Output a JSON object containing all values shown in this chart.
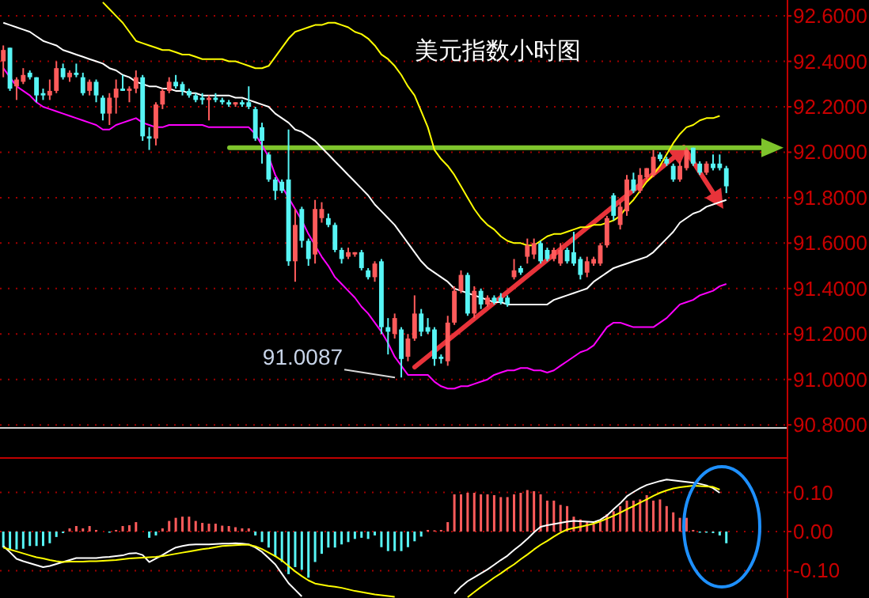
{
  "chart_data": [
    {
      "type": "candlestick",
      "title": "美元指数小时图",
      "categories": [
        null,
        null,
        null,
        null,
        null,
        null,
        null,
        null,
        null,
        null,
        null,
        null,
        null,
        null,
        null,
        null,
        null,
        null,
        null,
        null,
        null,
        null,
        null,
        null,
        null,
        null,
        null,
        null,
        null,
        null,
        null,
        null,
        null,
        null,
        null,
        null,
        null,
        null,
        null,
        null,
        null,
        null,
        null,
        null,
        null,
        null,
        null,
        null,
        null,
        null,
        null,
        null,
        null,
        null,
        null,
        null,
        null,
        null,
        null,
        null,
        null,
        null,
        null,
        null,
        null,
        null,
        null,
        null,
        null,
        null,
        null,
        null,
        null,
        null,
        null,
        null,
        null,
        null,
        null,
        null,
        null,
        null,
        null,
        null,
        null,
        null,
        null,
        null,
        null,
        null,
        null,
        null,
        null,
        null,
        null,
        null,
        null,
        null,
        null,
        null,
        null,
        null,
        null,
        null,
        null,
        null,
        null,
        null,
        null,
        null
      ],
      "ohlc": [
        [
          92.4,
          92.47,
          92.33,
          92.45
        ],
        [
          92.46,
          92.46,
          92.27,
          92.28
        ],
        [
          92.29,
          92.33,
          92.23,
          92.32
        ],
        [
          92.31,
          92.37,
          92.3,
          92.34
        ],
        [
          92.35,
          92.36,
          92.32,
          92.33
        ],
        [
          92.33,
          92.33,
          92.22,
          92.25
        ],
        [
          92.26,
          92.28,
          92.23,
          92.25
        ],
        [
          92.25,
          92.32,
          92.23,
          92.27
        ],
        [
          92.27,
          92.4,
          92.26,
          92.37
        ],
        [
          92.37,
          92.39,
          92.32,
          92.33
        ],
        [
          92.33,
          92.36,
          92.31,
          92.35
        ],
        [
          92.35,
          92.39,
          92.33,
          92.34
        ],
        [
          92.33,
          92.35,
          92.25,
          92.26
        ],
        [
          92.27,
          92.32,
          92.25,
          92.31
        ],
        [
          92.31,
          92.32,
          92.22,
          92.25
        ],
        [
          92.24,
          92.25,
          92.14,
          92.17
        ],
        [
          92.17,
          92.26,
          92.12,
          92.24
        ],
        [
          92.24,
          92.32,
          92.17,
          92.28
        ],
        [
          92.28,
          92.34,
          92.27,
          92.27
        ],
        [
          92.27,
          92.29,
          92.22,
          92.28
        ],
        [
          92.28,
          92.36,
          92.26,
          92.33
        ],
        [
          92.33,
          92.34,
          92.05,
          92.07
        ],
        [
          92.07,
          92.11,
          92.01,
          92.06
        ],
        [
          92.06,
          92.22,
          92.03,
          92.21
        ],
        [
          92.21,
          92.28,
          92.19,
          92.27
        ],
        [
          92.27,
          92.33,
          92.26,
          92.31
        ],
        [
          92.31,
          92.34,
          92.28,
          92.29
        ],
        [
          92.3,
          92.31,
          92.25,
          92.27
        ],
        [
          92.27,
          92.28,
          92.24,
          92.25
        ],
        [
          92.25,
          92.26,
          92.22,
          92.23
        ],
        [
          92.24,
          92.26,
          92.21,
          92.23
        ],
        [
          92.23,
          92.25,
          92.14,
          92.24
        ],
        [
          92.24,
          92.26,
          92.22,
          92.23
        ],
        [
          92.23,
          92.24,
          92.21,
          92.22
        ],
        [
          92.22,
          92.23,
          92.2,
          92.21
        ],
        [
          92.21,
          92.22,
          92.2,
          92.22
        ],
        [
          92.22,
          92.23,
          92.2,
          92.21
        ],
        [
          92.22,
          92.29,
          92.19,
          92.2
        ],
        [
          92.19,
          92.2,
          92.05,
          92.06
        ],
        [
          92.11,
          92.13,
          91.95,
          92.05
        ],
        [
          91.99,
          92.0,
          91.87,
          91.88
        ],
        [
          91.88,
          91.89,
          91.79,
          91.83
        ],
        [
          91.87,
          91.88,
          91.82,
          91.83
        ],
        [
          91.88,
          92.1,
          91.5,
          91.52
        ],
        [
          91.52,
          91.75,
          91.43,
          91.68
        ],
        [
          91.75,
          91.76,
          91.58,
          91.61
        ],
        [
          91.61,
          91.62,
          91.5,
          91.53
        ],
        [
          91.55,
          91.79,
          91.51,
          91.75
        ],
        [
          91.71,
          91.78,
          91.69,
          91.75
        ],
        [
          91.71,
          91.73,
          91.67,
          91.68
        ],
        [
          91.68,
          91.69,
          91.56,
          91.57
        ],
        [
          91.57,
          91.58,
          91.51,
          91.53
        ],
        [
          91.54,
          91.58,
          91.53,
          91.56
        ],
        [
          91.55,
          91.56,
          91.54,
          91.56
        ],
        [
          91.56,
          91.57,
          91.48,
          91.49
        ],
        [
          91.48,
          91.49,
          91.44,
          91.45
        ],
        [
          91.45,
          91.52,
          91.43,
          91.51
        ],
        [
          91.52,
          91.53,
          91.2,
          91.23
        ],
        [
          91.23,
          91.27,
          91.11,
          91.21
        ],
        [
          91.2,
          91.29,
          91.18,
          91.27
        ],
        [
          91.22,
          91.23,
          91.0087,
          91.09
        ],
        [
          91.1,
          91.2,
          91.08,
          91.18
        ],
        [
          91.18,
          91.37,
          91.17,
          91.29
        ],
        [
          91.29,
          91.31,
          91.19,
          91.21
        ],
        [
          91.23,
          91.27,
          91.2,
          91.21
        ],
        [
          91.22,
          91.23,
          91.06,
          91.09
        ],
        [
          91.1,
          91.11,
          91.07,
          91.09
        ],
        [
          91.08,
          91.28,
          91.06,
          91.25
        ],
        [
          91.25,
          91.41,
          91.24,
          91.39
        ],
        [
          91.39,
          91.48,
          91.38,
          91.46
        ],
        [
          91.46,
          91.47,
          91.28,
          91.29
        ],
        [
          91.29,
          91.41,
          91.27,
          91.39
        ],
        [
          91.39,
          91.4,
          91.31,
          91.33
        ],
        [
          91.33,
          91.37,
          91.32,
          91.36
        ],
        [
          91.36,
          91.37,
          91.33,
          91.34
        ],
        [
          91.36,
          91.38,
          91.33,
          91.34
        ],
        [
          91.36,
          91.37,
          91.32,
          91.33
        ],
        [
          91.45,
          91.53,
          91.44,
          91.48
        ],
        [
          91.49,
          91.5,
          91.46,
          91.47
        ],
        [
          91.54,
          91.62,
          91.51,
          91.59
        ],
        [
          91.55,
          91.62,
          91.53,
          91.6
        ],
        [
          91.6,
          91.61,
          91.51,
          91.52
        ],
        [
          91.57,
          91.58,
          91.52,
          91.53
        ],
        [
          91.53,
          91.58,
          91.52,
          91.57
        ],
        [
          91.51,
          91.6,
          91.5,
          91.57
        ],
        [
          91.57,
          91.58,
          91.51,
          91.52
        ],
        [
          91.56,
          91.65,
          91.5,
          91.51
        ],
        [
          91.53,
          91.54,
          91.44,
          91.46
        ],
        [
          91.47,
          91.54,
          91.45,
          91.52
        ],
        [
          91.51,
          91.54,
          91.5,
          91.53
        ],
        [
          91.51,
          91.6,
          91.5,
          91.59
        ],
        [
          91.59,
          91.72,
          91.58,
          91.71
        ],
        [
          91.81,
          91.82,
          91.7,
          91.72
        ],
        [
          91.68,
          91.78,
          91.66,
          91.76
        ],
        [
          91.74,
          91.9,
          91.72,
          91.88
        ],
        [
          91.88,
          91.91,
          91.82,
          91.83
        ],
        [
          91.83,
          91.93,
          91.82,
          91.9
        ],
        [
          91.89,
          91.93,
          91.88,
          91.93
        ],
        [
          91.9,
          92.01,
          91.89,
          91.98
        ],
        [
          91.99,
          92.0,
          91.96,
          91.97
        ],
        [
          91.97,
          91.98,
          91.94,
          91.95
        ],
        [
          91.94,
          91.95,
          91.87,
          91.88
        ],
        [
          91.88,
          91.96,
          91.87,
          91.94
        ],
        [
          91.93,
          92.02,
          91.92,
          92.01
        ],
        [
          92.02,
          92.02,
          91.94,
          91.95
        ],
        [
          91.95,
          91.96,
          91.9,
          91.91
        ],
        [
          91.91,
          91.96,
          91.9,
          91.95
        ],
        [
          91.95,
          91.99,
          91.92,
          91.93
        ],
        [
          91.95,
          91.99,
          91.92,
          91.93
        ],
        [
          91.93,
          91.94,
          91.82,
          91.85
        ]
      ],
      "colors": [
        "#ff5b5b",
        "#57f5f5",
        "#ff5b5b",
        "#ff5b5b",
        "#57f5f5",
        "#57f5f5",
        "#57f5f5",
        "#ff5b5b",
        "#ff5b5b",
        "#57f5f5",
        "#ff5b5b",
        "#57f5f5",
        "#57f5f5",
        "#ff5b5b",
        "#57f5f5",
        "#57f5f5",
        "#ff5b5b",
        "#ff5b5b",
        "#57f5f5",
        "#ff5b5b",
        "#ff5b5b",
        "#57f5f5",
        "#57f5f5",
        "#ff5b5b",
        "#ff5b5b",
        "#ff5b5b",
        "#57f5f5",
        "#57f5f5",
        "#57f5f5",
        "#57f5f5",
        "#57f5f5",
        "#ff5b5b",
        "#57f5f5",
        "#57f5f5",
        "#57f5f5",
        "#ff5b5b",
        "#57f5f5",
        "#57f5f5",
        "#57f5f5",
        "#57f5f5",
        "#57f5f5",
        "#57f5f5",
        "#57f5f5",
        "#57f5f5",
        "#ff5b5b",
        "#57f5f5",
        "#57f5f5",
        "#ff5b5b",
        "#ff5b5b",
        "#57f5f5",
        "#57f5f5",
        "#57f5f5",
        "#ff5b5b",
        "#ff5b5b",
        "#57f5f5",
        "#57f5f5",
        "#ff5b5b",
        "#57f5f5",
        "#57f5f5",
        "#ff5b5b",
        "#57f5f5",
        "#ff5b5b",
        "#ff5b5b",
        "#57f5f5",
        "#57f5f5",
        "#57f5f5",
        "#57f5f5",
        "#ff5b5b",
        "#ff5b5b",
        "#ff5b5b",
        "#57f5f5",
        "#ff5b5b",
        "#57f5f5",
        "#ff5b5b",
        "#57f5f5",
        "#57f5f5",
        "#57f5f5",
        "#ff5b5b",
        "#57f5f5",
        "#ff5b5b",
        "#ff5b5b",
        "#57f5f5",
        "#57f5f5",
        "#ff5b5b",
        "#ff5b5b",
        "#57f5f5",
        "#57f5f5",
        "#57f5f5",
        "#ff5b5b",
        "#ff5b5b",
        "#ff5b5b",
        "#ff5b5b",
        "#57f5f5",
        "#ff5b5b",
        "#ff5b5b",
        "#57f5f5",
        "#ff5b5b",
        "#ff5b5b",
        "#ff5b5b",
        "#57f5f5",
        "#57f5f5",
        "#57f5f5",
        "#ff5b5b",
        "#ff5b5b",
        "#57f5f5",
        "#57f5f5",
        "#ff5b5b",
        "#57f5f5",
        "#57f5f5",
        "#57f5f5"
      ],
      "series": [
        {
          "type": "line",
          "color": "#ffff00",
          "values": [
            null,
            null,
            null,
            null,
            null,
            null,
            null,
            null,
            null,
            null,
            null,
            null,
            null,
            null,
            null,
            92.66,
            92.63,
            92.6,
            92.57,
            92.53,
            92.49,
            92.48,
            92.47,
            92.46,
            92.45,
            92.45,
            92.44,
            92.43,
            92.43,
            92.42,
            92.41,
            92.41,
            92.41,
            92.41,
            92.4,
            92.4,
            92.39,
            92.38,
            92.37,
            92.37,
            92.38,
            92.42,
            92.46,
            92.5,
            92.53,
            92.54,
            92.55,
            92.56,
            92.56,
            92.57,
            92.57,
            92.56,
            92.55,
            92.53,
            92.52,
            92.5,
            92.47,
            92.43,
            92.41,
            92.38,
            92.34,
            92.29,
            92.25,
            92.18,
            92.11,
            92.01,
            91.97,
            91.94,
            91.9,
            91.85,
            91.8,
            91.75,
            91.71,
            91.68,
            91.66,
            91.63,
            91.61,
            91.6,
            91.6,
            91.59,
            91.59,
            91.61,
            91.63,
            91.64,
            91.64,
            91.65,
            91.66,
            91.67,
            91.67,
            91.68,
            91.68,
            91.69,
            91.7,
            91.72,
            91.76,
            91.79,
            91.83,
            91.87,
            91.9,
            91.94,
            91.99,
            92.04,
            92.08,
            92.11,
            92.12,
            92.14,
            92.15,
            92.15,
            92.16,
            null
          ]
        },
        {
          "type": "line",
          "color": "#ffffff",
          "values": [
            92.57,
            92.56,
            92.55,
            92.54,
            92.53,
            92.51,
            92.49,
            92.48,
            92.47,
            92.45,
            92.44,
            92.43,
            92.42,
            92.41,
            92.4,
            92.39,
            92.37,
            92.36,
            92.34,
            92.33,
            92.31,
            92.3,
            92.29,
            92.29,
            92.28,
            92.28,
            92.27,
            92.27,
            92.26,
            92.26,
            92.25,
            92.25,
            92.25,
            92.25,
            92.25,
            92.24,
            92.24,
            92.23,
            92.22,
            92.21,
            92.2,
            92.17,
            92.15,
            92.13,
            92.1,
            92.09,
            92.07,
            92.05,
            92.02,
            91.99,
            91.96,
            91.93,
            91.9,
            91.87,
            91.84,
            91.81,
            91.77,
            91.74,
            91.71,
            91.68,
            91.64,
            91.6,
            91.56,
            91.52,
            91.49,
            91.47,
            91.45,
            91.43,
            91.4,
            91.39,
            91.38,
            91.37,
            91.36,
            91.35,
            91.34,
            91.34,
            91.33,
            91.33,
            91.33,
            91.33,
            91.33,
            91.33,
            91.33,
            91.35,
            91.36,
            91.37,
            91.38,
            91.39,
            91.4,
            91.43,
            91.45,
            91.47,
            91.49,
            91.5,
            91.51,
            91.52,
            91.53,
            91.54,
            91.56,
            91.59,
            91.62,
            91.65,
            91.69,
            91.71,
            91.73,
            91.74,
            91.76,
            91.77,
            91.78,
            91.79
          ]
        },
        {
          "type": "line",
          "color": "#ff00ff",
          "values": [
            92.37,
            92.33,
            92.29,
            92.27,
            92.25,
            92.22,
            92.2,
            92.19,
            92.18,
            92.17,
            92.16,
            92.15,
            92.14,
            92.13,
            92.12,
            92.1,
            92.1,
            92.12,
            92.13,
            92.14,
            92.15,
            92.13,
            92.12,
            92.11,
            92.11,
            92.12,
            92.12,
            92.12,
            92.12,
            92.12,
            92.12,
            92.11,
            92.11,
            92.11,
            92.11,
            92.11,
            92.11,
            92.11,
            92.08,
            92.03,
            91.98,
            91.9,
            91.85,
            91.8,
            91.75,
            91.7,
            91.64,
            91.59,
            91.54,
            91.5,
            91.45,
            91.42,
            91.39,
            91.36,
            91.32,
            91.29,
            91.25,
            91.21,
            91.16,
            91.1,
            91.06,
            91.02,
            91.02,
            91.02,
            91.02,
            90.99,
            90.97,
            90.96,
            90.96,
            90.97,
            90.97,
            90.98,
            90.99,
            91.0,
            91.02,
            91.03,
            91.04,
            91.04,
            91.05,
            91.05,
            91.04,
            91.04,
            91.03,
            91.04,
            91.06,
            91.08,
            91.1,
            91.12,
            91.13,
            91.15,
            91.19,
            91.23,
            91.25,
            91.25,
            91.24,
            91.23,
            91.23,
            91.23,
            91.23,
            91.25,
            91.27,
            91.3,
            91.33,
            91.34,
            91.35,
            91.37,
            91.38,
            91.39,
            91.41,
            91.42
          ]
        }
      ],
      "ylim": [
        90.79,
        92.67
      ],
      "yticks": [
        {
          "value": 92.6,
          "label": "92.6000"
        },
        {
          "value": 92.4,
          "label": "92.4000"
        },
        {
          "value": 92.2,
          "label": "92.2000"
        },
        {
          "value": 92.0,
          "label": "92.0000"
        },
        {
          "value": 91.8,
          "label": "91.8000"
        },
        {
          "value": 91.6,
          "label": "91.6000"
        },
        {
          "value": 91.4,
          "label": "91.4000"
        },
        {
          "value": 91.2,
          "label": "91.2000"
        },
        {
          "value": 91.0,
          "label": "91.0000"
        },
        {
          "value": 90.8,
          "label": "90.8000"
        }
      ],
      "grid": "y",
      "tick_labels": "y",
      "ref_lines": [
        {
          "axis": "y",
          "value": 92.02,
          "color": "#7ec42c"
        }
      ],
      "annotations": [
        "91.0087"
      ]
    },
    {
      "type": "bar",
      "categories": [
        null,
        null,
        null,
        null,
        null,
        null,
        null,
        null,
        null,
        null,
        null,
        null,
        null,
        null,
        null,
        null,
        null,
        null,
        null,
        null,
        null,
        null,
        null,
        null,
        null,
        null,
        null,
        null,
        null,
        null,
        null,
        null,
        null,
        null,
        null,
        null,
        null,
        null,
        null,
        null,
        null,
        null,
        null,
        null,
        null,
        null,
        null,
        null,
        null,
        null,
        null,
        null,
        null,
        null,
        null,
        null,
        null,
        null,
        null,
        null,
        null,
        null,
        null,
        null,
        null,
        null,
        null,
        null,
        null,
        null,
        null,
        null,
        null,
        null,
        null,
        null,
        null,
        null,
        null,
        null,
        null,
        null,
        null,
        null,
        null,
        null,
        null,
        null,
        null,
        null,
        null,
        null,
        null,
        null,
        null,
        null,
        null,
        null,
        null,
        null,
        null,
        null,
        null,
        null,
        null,
        null,
        null,
        null,
        null,
        null
      ],
      "series": [
        {
          "type": "bar",
          "color": "#ff5b5b",
          "values": [
            null,
            null,
            null,
            null,
            null,
            null,
            null,
            null,
            null,
            null,
            0.008,
            0.014,
            0.008,
            0.014,
            0.004,
            null,
            null,
            0.004,
            0.014,
            0.016,
            0.024,
            null,
            null,
            null,
            0.008,
            0.027,
            0.035,
            0.038,
            0.038,
            0.027,
            0.022,
            0.02,
            0.02,
            0.015,
            0.014,
            0.011,
            0.008,
            0.008,
            null,
            null,
            null,
            null,
            null,
            null,
            null,
            null,
            null,
            null,
            null,
            null,
            null,
            null,
            null,
            null,
            null,
            null,
            null,
            null,
            null,
            null,
            null,
            null,
            null,
            null,
            0.004,
            0.003,
            0.004,
            0.024,
            0.095,
            0.095,
            0.099,
            0.099,
            0.095,
            0.095,
            0.093,
            0.088,
            0.088,
            0.095,
            0.099,
            0.106,
            0.103,
            0.095,
            0.079,
            0.079,
            0.068,
            0.065,
            0.038,
            0.031,
            0.024,
            0.018,
            0.024,
            0.044,
            0.052,
            0.065,
            0.079,
            0.079,
            0.082,
            0.093,
            0.079,
            0.082,
            0.065,
            0.049,
            0.035,
            0.035,
            0.004,
            null,
            null,
            null,
            null,
            null
          ]
        },
        {
          "type": "bar",
          "color": "#57f5f5",
          "values": [
            -0.041,
            -0.046,
            -0.046,
            -0.044,
            -0.037,
            -0.037,
            -0.037,
            -0.03,
            -0.014,
            -0.004,
            null,
            null,
            null,
            null,
            null,
            null,
            -0.003,
            null,
            null,
            null,
            null,
            null,
            -0.016,
            -0.01,
            null,
            null,
            null,
            null,
            null,
            null,
            null,
            null,
            null,
            null,
            null,
            null,
            null,
            null,
            -0.01,
            -0.027,
            -0.041,
            -0.064,
            -0.078,
            -0.109,
            -0.091,
            -0.098,
            -0.118,
            -0.078,
            -0.057,
            -0.041,
            -0.041,
            -0.033,
            -0.027,
            -0.019,
            -0.016,
            -0.019,
            -0.01,
            -0.04,
            -0.05,
            -0.05,
            -0.05,
            -0.04,
            -0.025,
            -0.013,
            null,
            null,
            null,
            null,
            null,
            null,
            null,
            null,
            null,
            null,
            null,
            null,
            null,
            null,
            null,
            null,
            null,
            null,
            null,
            null,
            null,
            null,
            null,
            null,
            null,
            null,
            null,
            null,
            null,
            null,
            null,
            null,
            null,
            null,
            null,
            null,
            null,
            null,
            null,
            null,
            null,
            -0.003,
            -0.003,
            -0.004,
            -0.01,
            -0.03
          ]
        },
        {
          "type": "line",
          "color": "#ffffff",
          "values": [
            -0.037,
            -0.053,
            -0.07,
            -0.076,
            -0.081,
            -0.086,
            -0.091,
            -0.088,
            -0.083,
            -0.078,
            -0.073,
            -0.068,
            -0.068,
            -0.068,
            -0.068,
            -0.066,
            -0.065,
            -0.063,
            -0.061,
            -0.056,
            -0.055,
            -0.06,
            -0.078,
            -0.069,
            -0.06,
            -0.05,
            -0.041,
            -0.037,
            -0.034,
            -0.033,
            -0.033,
            -0.033,
            -0.032,
            -0.031,
            -0.031,
            -0.03,
            -0.031,
            -0.033,
            -0.041,
            -0.052,
            -0.068,
            -0.084,
            -0.108,
            -0.132,
            -0.149,
            -0.166,
            null,
            null,
            null,
            null,
            null,
            null,
            null,
            null,
            null,
            null,
            null,
            null,
            null,
            null,
            null,
            null,
            null,
            null,
            null,
            null,
            null,
            null,
            -0.159,
            -0.141,
            -0.127,
            -0.117,
            -0.107,
            -0.097,
            -0.085,
            -0.073,
            -0.062,
            -0.047,
            -0.034,
            -0.019,
            -0.002,
            0.012,
            0.016,
            0.019,
            0.022,
            0.025,
            0.027,
            0.026,
            0.025,
            0.024,
            0.03,
            0.041,
            0.057,
            0.072,
            0.09,
            0.101,
            0.111,
            0.119,
            0.124,
            0.129,
            0.133,
            0.131,
            0.129,
            0.127,
            0.125,
            0.122,
            0.118,
            0.111,
            0.099,
            null
          ]
        },
        {
          "type": "line",
          "color": "#ffff00",
          "values": [
            -0.041,
            -0.046,
            -0.051,
            -0.056,
            -0.061,
            -0.066,
            -0.069,
            -0.073,
            -0.076,
            -0.078,
            -0.077,
            -0.077,
            -0.077,
            -0.076,
            -0.076,
            -0.075,
            -0.074,
            -0.073,
            -0.071,
            -0.069,
            -0.068,
            -0.067,
            -0.066,
            -0.065,
            -0.063,
            -0.06,
            -0.057,
            -0.054,
            -0.051,
            -0.048,
            -0.045,
            -0.043,
            -0.04,
            -0.037,
            -0.036,
            -0.035,
            -0.034,
            -0.034,
            -0.038,
            -0.045,
            -0.054,
            -0.063,
            -0.074,
            -0.088,
            -0.102,
            -0.114,
            -0.125,
            -0.133,
            -0.136,
            -0.139,
            -0.141,
            -0.144,
            -0.148,
            -0.152,
            -0.155,
            -0.158,
            -0.161,
            -0.163,
            -0.165,
            -0.167,
            null,
            null,
            null,
            null,
            null,
            null,
            null,
            null,
            null,
            null,
            -0.168,
            -0.155,
            -0.142,
            -0.13,
            -0.118,
            -0.107,
            -0.095,
            -0.084,
            -0.071,
            -0.059,
            -0.046,
            -0.034,
            -0.024,
            -0.013,
            -0.003,
            0.005,
            0.009,
            0.012,
            0.016,
            0.02,
            0.026,
            0.033,
            0.04,
            0.048,
            0.057,
            0.065,
            0.074,
            0.082,
            0.091,
            0.099,
            0.105,
            0.11,
            0.113,
            0.115,
            0.117,
            0.116,
            0.115,
            0.114,
            0.107,
            null
          ]
        }
      ],
      "ylim": [
        -0.17,
        0.19
      ],
      "yticks": [
        {
          "value": 0.1,
          "label": "0.10"
        },
        {
          "value": 0,
          "label": "0.00"
        },
        {
          "value": -0.1,
          "label": "-0.10"
        }
      ],
      "grid": "y",
      "tick_labels": "y"
    }
  ]
}
